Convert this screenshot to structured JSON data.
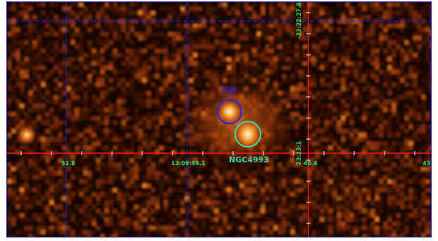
{
  "image": {
    "kind": "x-ray-count-map",
    "colormap": [
      "#150602",
      "#3e1305",
      "#7a2a08",
      "#b84a0e",
      "#ec7a1c",
      "#ffc060",
      "#fff3d8"
    ]
  },
  "sources": [
    {
      "name": "GW",
      "color": "#3323d8"
    },
    {
      "name": "NGC4993",
      "color": "#39d6a8"
    }
  ],
  "axes": {
    "ra_labels": [
      "51.8",
      "13:09:49.1",
      "46.4",
      "43."
    ],
    "dec_labels": [
      "-23:22:27.8",
      "23:23:1"
    ],
    "label_color": "#27e86a",
    "grid_red": "#ff1a1a",
    "grid_blue": "#1c2ad8"
  }
}
